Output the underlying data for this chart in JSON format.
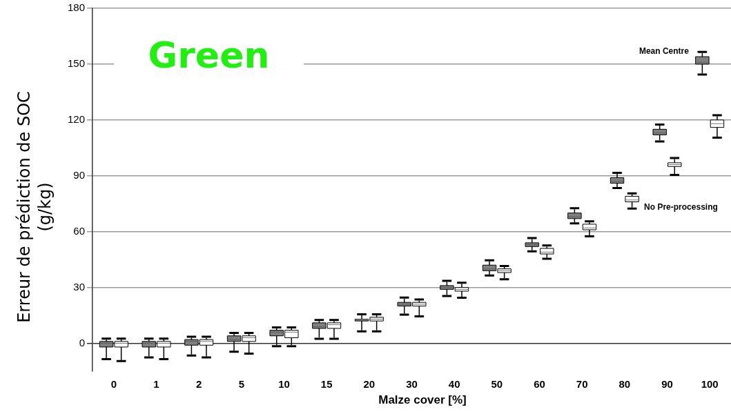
{
  "chart_data": {
    "type": "box",
    "title": "Green",
    "xlabel": "Malze cover [%]",
    "ylabel": "Erreur de prédiction de SOC (g/kg)",
    "categories": [
      "0",
      "1",
      "2",
      "5",
      "10",
      "15",
      "20",
      "30",
      "40",
      "50",
      "60",
      "70",
      "80",
      "90",
      "100"
    ],
    "ylim": [
      -15,
      180
    ],
    "yticks": [
      0,
      30,
      60,
      90,
      120,
      150,
      180
    ],
    "grid": "y",
    "series": [
      {
        "name": "Mean Centre",
        "color": "#808080",
        "boxes": [
          {
            "low": -8,
            "q1": -2,
            "median": 0,
            "q3": 1,
            "high": 2
          },
          {
            "low": -7,
            "q1": -2,
            "median": 0,
            "q3": 1,
            "high": 2
          },
          {
            "low": -6,
            "q1": -1,
            "median": 1,
            "q3": 2,
            "high": 3
          },
          {
            "low": -4,
            "q1": 1,
            "median": 2,
            "q3": 4,
            "high": 5
          },
          {
            "low": -1,
            "q1": 4,
            "median": 6,
            "q3": 7,
            "high": 8
          },
          {
            "low": 3,
            "q1": 8,
            "median": 9,
            "q3": 11,
            "high": 12
          },
          {
            "low": 7,
            "q1": 12,
            "median": 13,
            "q3": 13,
            "high": 15
          },
          {
            "low": 16,
            "q1": 20,
            "median": 21,
            "q3": 22,
            "high": 24
          },
          {
            "low": 26,
            "q1": 29,
            "median": 30,
            "q3": 31,
            "high": 33
          },
          {
            "low": 37,
            "q1": 39,
            "median": 40,
            "q3": 42,
            "high": 44
          },
          {
            "low": 50,
            "q1": 52,
            "median": 53,
            "q3": 54,
            "high": 56
          },
          {
            "low": 65,
            "q1": 67,
            "median": 68,
            "q3": 70,
            "high": 72
          },
          {
            "low": 84,
            "q1": 86,
            "median": 87,
            "q3": 89,
            "high": 91
          },
          {
            "low": 109,
            "q1": 112,
            "median": 113,
            "q3": 115,
            "high": 117
          },
          {
            "low": 145,
            "q1": 150,
            "median": 151,
            "q3": 154,
            "high": 156
          }
        ]
      },
      {
        "name": "No Pre-processing",
        "color": "#ffffff",
        "boxes": [
          {
            "low": -9,
            "q1": -2,
            "median": 0,
            "q3": 1,
            "high": 2
          },
          {
            "low": -8,
            "q1": -2,
            "median": 0,
            "q3": 1,
            "high": 2
          },
          {
            "low": -7,
            "q1": -1,
            "median": 1,
            "q3": 2,
            "high": 3
          },
          {
            "low": -5,
            "q1": 1,
            "median": 3,
            "q3": 4,
            "high": 5
          },
          {
            "low": -1,
            "q1": 3,
            "median": 6,
            "q3": 7,
            "high": 8
          },
          {
            "low": 3,
            "q1": 8,
            "median": 10,
            "q3": 11,
            "high": 12
          },
          {
            "low": 7,
            "q1": 12,
            "median": 13,
            "q3": 14,
            "high": 15
          },
          {
            "low": 15,
            "q1": 20,
            "median": 21,
            "q3": 22,
            "high": 23
          },
          {
            "low": 25,
            "q1": 28,
            "median": 29,
            "q3": 30,
            "high": 32
          },
          {
            "low": 35,
            "q1": 38,
            "median": 39,
            "q3": 40,
            "high": 41
          },
          {
            "low": 46,
            "q1": 48,
            "median": 49,
            "q3": 51,
            "high": 52
          },
          {
            "low": 58,
            "q1": 61,
            "median": 62,
            "q3": 64,
            "high": 65
          },
          {
            "low": 73,
            "q1": 76,
            "median": 77,
            "q3": 79,
            "high": 80
          },
          {
            "low": 91,
            "q1": 95,
            "median": 96,
            "q3": 97,
            "high": 99
          },
          {
            "low": 111,
            "q1": 116,
            "median": 118,
            "q3": 120,
            "high": 122
          }
        ]
      }
    ]
  }
}
